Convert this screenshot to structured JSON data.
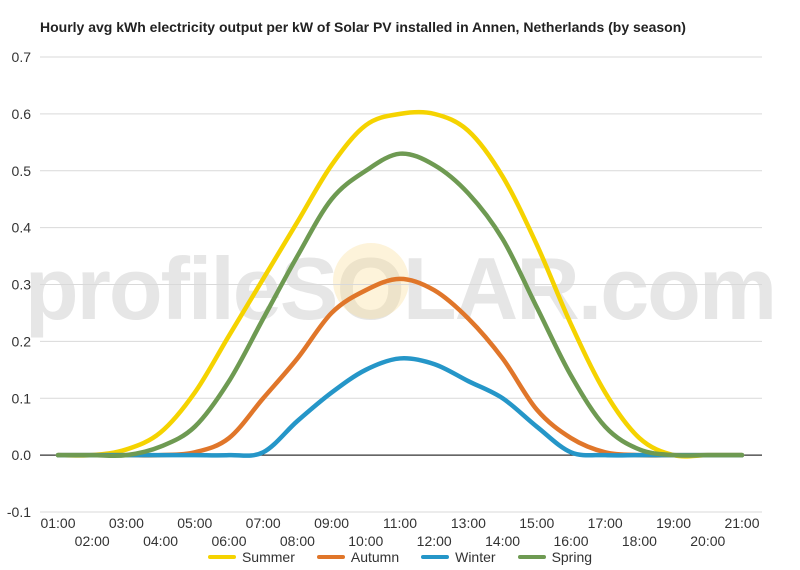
{
  "title": "Hourly avg kWh electricity output per kW of Solar PV installed in Annen, Netherlands (by season)",
  "watermark": "profileSOLAR.com",
  "chart_data": {
    "type": "line",
    "categories": [
      "01:00",
      "02:00",
      "03:00",
      "04:00",
      "05:00",
      "06:00",
      "07:00",
      "08:00",
      "09:00",
      "10:00",
      "11:00",
      "12:00",
      "13:00",
      "14:00",
      "15:00",
      "16:00",
      "17:00",
      "18:00",
      "19:00",
      "20:00",
      "21:00"
    ],
    "ylim": [
      -0.1,
      0.7
    ],
    "yticks": [
      -0.1,
      0.0,
      0.1,
      0.2,
      0.3,
      0.4,
      0.5,
      0.6,
      0.7
    ],
    "ytick_labels": [
      "-0.1",
      "0.0",
      "0.1",
      "0.2",
      "0.3",
      "0.4",
      "0.5",
      "0.6",
      "0.7"
    ],
    "grid": true,
    "legend_position": "bottom",
    "series": [
      {
        "name": "Summer",
        "color": "#f5d300",
        "values": [
          0,
          0,
          0.01,
          0.04,
          0.11,
          0.21,
          0.31,
          0.41,
          0.51,
          0.58,
          0.6,
          0.6,
          0.57,
          0.49,
          0.37,
          0.23,
          0.11,
          0.03,
          0.0,
          0,
          0
        ]
      },
      {
        "name": "Autumn",
        "color": "#e0762a",
        "values": [
          0,
          0,
          0,
          0,
          0.005,
          0.03,
          0.1,
          0.17,
          0.25,
          0.29,
          0.31,
          0.29,
          0.24,
          0.17,
          0.08,
          0.03,
          0.005,
          0,
          0,
          0,
          0
        ]
      },
      {
        "name": "Winter",
        "color": "#2596c8",
        "values": [
          0,
          0,
          0,
          0,
          0,
          0,
          0.005,
          0.06,
          0.11,
          0.15,
          0.17,
          0.16,
          0.13,
          0.1,
          0.05,
          0.005,
          0,
          0,
          0,
          0,
          0
        ]
      },
      {
        "name": "Spring",
        "color": "#6e9a52",
        "values": [
          0,
          0,
          0,
          0.015,
          0.05,
          0.13,
          0.24,
          0.35,
          0.45,
          0.5,
          0.53,
          0.51,
          0.46,
          0.38,
          0.26,
          0.14,
          0.05,
          0.01,
          0,
          0,
          0
        ]
      }
    ]
  }
}
